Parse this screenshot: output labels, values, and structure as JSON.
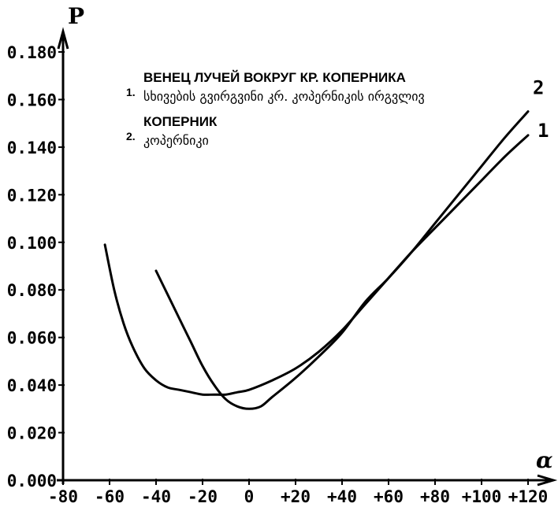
{
  "chart_data": {
    "type": "line",
    "title": "",
    "xlabel": "α",
    "ylabel": "P",
    "xlim": [
      -80,
      120
    ],
    "ylim": [
      0,
      0.18
    ],
    "x_ticks": [
      "-80",
      "-60",
      "-40",
      "-20",
      "0",
      "+20",
      "+40",
      "+60",
      "+80",
      "+100",
      "+120"
    ],
    "y_ticks": [
      "0.000",
      "0.020",
      "0.040",
      "0.060",
      "0.080",
      "0.100",
      "0.120",
      "0.140",
      "0.160",
      "0.180"
    ],
    "grid": false,
    "legend": [
      {
        "num": "1.",
        "ru": "ВЕНЕЦ ЛУЧЕЙ ВОКРУГ КР. КОПЕРНИКА",
        "ka": "სხივების გვირგვინი კრ. კოპერნიკის ირგვლივ"
      },
      {
        "num": "2.",
        "ru": "КОПЕРНИК",
        "ka": "კოპერნიკი"
      }
    ],
    "series": [
      {
        "name": "1",
        "points": [
          [
            -62,
            0.099
          ],
          [
            -58,
            0.08
          ],
          [
            -54,
            0.066
          ],
          [
            -50,
            0.056
          ],
          [
            -45,
            0.047
          ],
          [
            -40,
            0.042
          ],
          [
            -35,
            0.039
          ],
          [
            -30,
            0.038
          ],
          [
            -25,
            0.037
          ],
          [
            -20,
            0.036
          ],
          [
            -15,
            0.036
          ],
          [
            -10,
            0.036
          ],
          [
            -5,
            0.037
          ],
          [
            0,
            0.038
          ],
          [
            10,
            0.042
          ],
          [
            20,
            0.047
          ],
          [
            30,
            0.054
          ],
          [
            40,
            0.063
          ],
          [
            50,
            0.074
          ],
          [
            60,
            0.085
          ],
          [
            70,
            0.096
          ],
          [
            80,
            0.106
          ],
          [
            90,
            0.116
          ],
          [
            100,
            0.126
          ],
          [
            110,
            0.136
          ],
          [
            120,
            0.145
          ]
        ]
      },
      {
        "name": "2",
        "points": [
          [
            -40,
            0.088
          ],
          [
            -35,
            0.078
          ],
          [
            -30,
            0.068
          ],
          [
            -25,
            0.058
          ],
          [
            -20,
            0.048
          ],
          [
            -15,
            0.04
          ],
          [
            -10,
            0.034
          ],
          [
            -5,
            0.031
          ],
          [
            0,
            0.03
          ],
          [
            5,
            0.031
          ],
          [
            10,
            0.035
          ],
          [
            20,
            0.043
          ],
          [
            30,
            0.052
          ],
          [
            40,
            0.062
          ],
          [
            50,
            0.075
          ],
          [
            60,
            0.085
          ],
          [
            70,
            0.096
          ],
          [
            80,
            0.108
          ],
          [
            90,
            0.12
          ],
          [
            100,
            0.132
          ],
          [
            110,
            0.144
          ],
          [
            120,
            0.155
          ]
        ]
      }
    ]
  }
}
